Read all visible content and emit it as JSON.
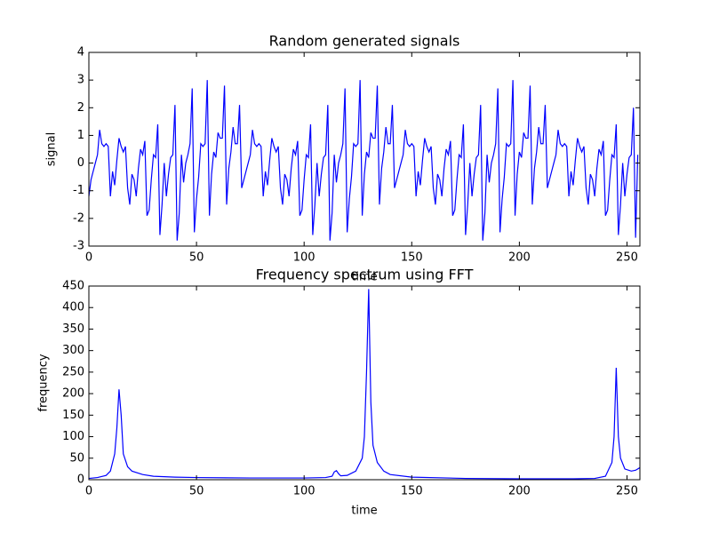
{
  "chart_data": [
    {
      "type": "line",
      "title": "Random generated signals",
      "x_label": "time",
      "y_label": "signal",
      "xlim": [
        0,
        256
      ],
      "ylim": [
        -3,
        4
      ],
      "xticks": [
        0,
        50,
        100,
        150,
        200,
        250
      ],
      "yticks": [
        -3,
        -2,
        -1,
        0,
        1,
        2,
        3,
        4
      ],
      "color": "#0000ff",
      "x": [
        0,
        1,
        2,
        3,
        4,
        5,
        6,
        7,
        8,
        9,
        10,
        11,
        12,
        13,
        14,
        15,
        16,
        17,
        18,
        19,
        20,
        21,
        22,
        23,
        24,
        25,
        26,
        27,
        28,
        29,
        30,
        31,
        32,
        33,
        34,
        35,
        36,
        37,
        38,
        39,
        40,
        41,
        42,
        43,
        44,
        45,
        46,
        47,
        48,
        49,
        50,
        51,
        52,
        53,
        54,
        55,
        56,
        57,
        58,
        59,
        60,
        61,
        62,
        63,
        64,
        65,
        66,
        67,
        68,
        69,
        70,
        71,
        72,
        73,
        74,
        75,
        76,
        77,
        78,
        79,
        80,
        81,
        82,
        83,
        84,
        85,
        86,
        87,
        88,
        89,
        90,
        91,
        92,
        93,
        94,
        95,
        96,
        97,
        98,
        99,
        100,
        101,
        102,
        103,
        104,
        105,
        106,
        107,
        108,
        109,
        110,
        111,
        112,
        113,
        114,
        115,
        116,
        117,
        118,
        119,
        120,
        121,
        122,
        123,
        124,
        125,
        126,
        127,
        128,
        129,
        130,
        131,
        132,
        133,
        134,
        135,
        136,
        137,
        138,
        139,
        140,
        141,
        142,
        143,
        144,
        145,
        146,
        147,
        148,
        149,
        150,
        151,
        152,
        153,
        154,
        155,
        156,
        157,
        158,
        159,
        160,
        161,
        162,
        163,
        164,
        165,
        166,
        167,
        168,
        169,
        170,
        171,
        172,
        173,
        174,
        175,
        176,
        177,
        178,
        179,
        180,
        181,
        182,
        183,
        184,
        185,
        186,
        187,
        188,
        189,
        190,
        191,
        192,
        193,
        194,
        195,
        196,
        197,
        198,
        199,
        200,
        201,
        202,
        203,
        204,
        205,
        206,
        207,
        208,
        209,
        210,
        211,
        212,
        213,
        214,
        215,
        216,
        217,
        218,
        219,
        220,
        221,
        222,
        223,
        224,
        225,
        226,
        227,
        228,
        229,
        230,
        231,
        232,
        233,
        234,
        235,
        236,
        237,
        238,
        239,
        240,
        241,
        242,
        243,
        244,
        245,
        246,
        247,
        248,
        249,
        250,
        251,
        252,
        253,
        254,
        255
      ],
      "values": [
        -1.2,
        -0.6,
        -0.3,
        0.0,
        0.3,
        1.2,
        0.7,
        0.6,
        0.7,
        0.6,
        -1.2,
        -0.3,
        -0.8,
        0.1,
        0.9,
        0.6,
        0.4,
        0.6,
        -0.9,
        -1.5,
        -0.4,
        -0.6,
        -1.2,
        -0.2,
        0.5,
        0.3,
        0.8,
        -1.9,
        -1.7,
        -0.6,
        0.3,
        0.2,
        1.4,
        -2.6,
        -1.5,
        0.0,
        -1.2,
        -0.4,
        0.2,
        0.3,
        2.1,
        -2.8,
        -1.8,
        0.3,
        -0.7,
        0.0,
        0.3,
        0.7,
        2.7,
        -2.5,
        -1.3,
        -0.5,
        0.7,
        0.6,
        0.7,
        3.0,
        -1.9,
        -0.4,
        0.4,
        0.2,
        1.1,
        0.9,
        0.9,
        2.8,
        -1.5,
        -0.2,
        0.4,
        1.3,
        0.7,
        0.7,
        2.1,
        -0.9,
        -0.6,
        -0.3,
        0.0,
        0.3,
        1.2,
        0.7,
        0.6,
        0.7,
        0.6,
        -1.2,
        -0.3,
        -0.8,
        0.1,
        0.9,
        0.6,
        0.4,
        0.6,
        -0.9,
        -1.5,
        -0.4,
        -0.6,
        -1.2,
        -0.2,
        0.5,
        0.3,
        0.8,
        -1.9,
        -1.7,
        -0.6,
        0.3,
        0.2,
        1.4,
        -2.6,
        -1.5,
        0.0,
        -1.2,
        -0.4,
        0.2,
        0.3,
        2.1,
        -2.8,
        -1.8,
        0.3,
        -0.7,
        0.0,
        0.3,
        0.7,
        2.7,
        -2.5,
        -1.3,
        -0.5,
        0.7,
        0.6,
        0.7,
        3.0,
        -1.9,
        -0.4,
        0.4,
        0.2,
        1.1,
        0.9,
        0.9,
        2.8,
        -1.5,
        -0.2,
        0.4,
        1.3,
        0.7,
        0.7,
        2.1,
        -0.9,
        -0.6,
        -0.3,
        0.0,
        0.3,
        1.2,
        0.7,
        0.6,
        0.7,
        0.6,
        -1.2,
        -0.3,
        -0.8,
        0.1,
        0.9,
        0.6,
        0.4,
        0.6,
        -0.9,
        -1.5,
        -0.4,
        -0.6,
        -1.2,
        -0.2,
        0.5,
        0.3,
        0.8,
        -1.9,
        -1.7,
        -0.6,
        0.3,
        0.2,
        1.4,
        -2.6,
        -1.5,
        0.0,
        -1.2,
        -0.4,
        0.2,
        0.3,
        2.1,
        -2.8,
        -1.8,
        0.3,
        -0.7,
        0.0,
        0.3,
        0.7,
        2.7,
        -2.5,
        -1.3,
        -0.5,
        0.7,
        0.6,
        0.7,
        3.0,
        -1.9,
        -0.4,
        0.4,
        0.2,
        1.1,
        0.9,
        0.9,
        2.8,
        -1.5,
        -0.2,
        0.4,
        1.3,
        0.7,
        0.7,
        2.1,
        -0.9,
        -0.6,
        -0.3,
        0.0,
        0.3,
        1.2,
        0.7,
        0.6,
        0.7,
        0.6,
        -1.2,
        -0.3,
        -0.8,
        0.1,
        0.9,
        0.6,
        0.4,
        0.6,
        -0.9,
        -1.5,
        -0.4,
        -0.6,
        -1.2,
        -0.2,
        0.5,
        0.3,
        0.8,
        -1.9,
        -1.7,
        -0.6,
        0.3,
        0.2,
        1.4,
        -2.6,
        -1.5,
        0.0,
        -1.2,
        -0.4,
        0.2,
        0.3,
        2.0,
        -2.7,
        0.3
      ]
    },
    {
      "type": "line",
      "title": "Frequency spectrum using FFT",
      "x_label": "time",
      "y_label": "frequency",
      "xlim": [
        0,
        256
      ],
      "ylim": [
        0,
        450
      ],
      "xticks": [
        0,
        50,
        100,
        150,
        200,
        250
      ],
      "yticks": [
        0,
        50,
        100,
        150,
        200,
        250,
        300,
        350,
        400,
        450
      ],
      "color": "#0000ff",
      "x": [
        0,
        4,
        8,
        10,
        12,
        13,
        14,
        15,
        16,
        18,
        20,
        25,
        30,
        40,
        50,
        75,
        100,
        110,
        113,
        114,
        115,
        116,
        117,
        120,
        124,
        127,
        128,
        129,
        130,
        131,
        132,
        134,
        137,
        140,
        150,
        175,
        200,
        225,
        235,
        240,
        243,
        244,
        245,
        246,
        247,
        249,
        252,
        254,
        256
      ],
      "values": [
        3,
        5,
        10,
        20,
        60,
        120,
        210,
        150,
        60,
        30,
        20,
        12,
        8,
        6,
        5,
        4,
        4,
        5,
        8,
        18,
        21,
        14,
        9,
        10,
        20,
        50,
        100,
        250,
        443,
        180,
        80,
        40,
        20,
        12,
        6,
        3,
        2,
        2,
        3,
        8,
        40,
        100,
        260,
        100,
        50,
        25,
        20,
        22,
        28
      ]
    }
  ]
}
